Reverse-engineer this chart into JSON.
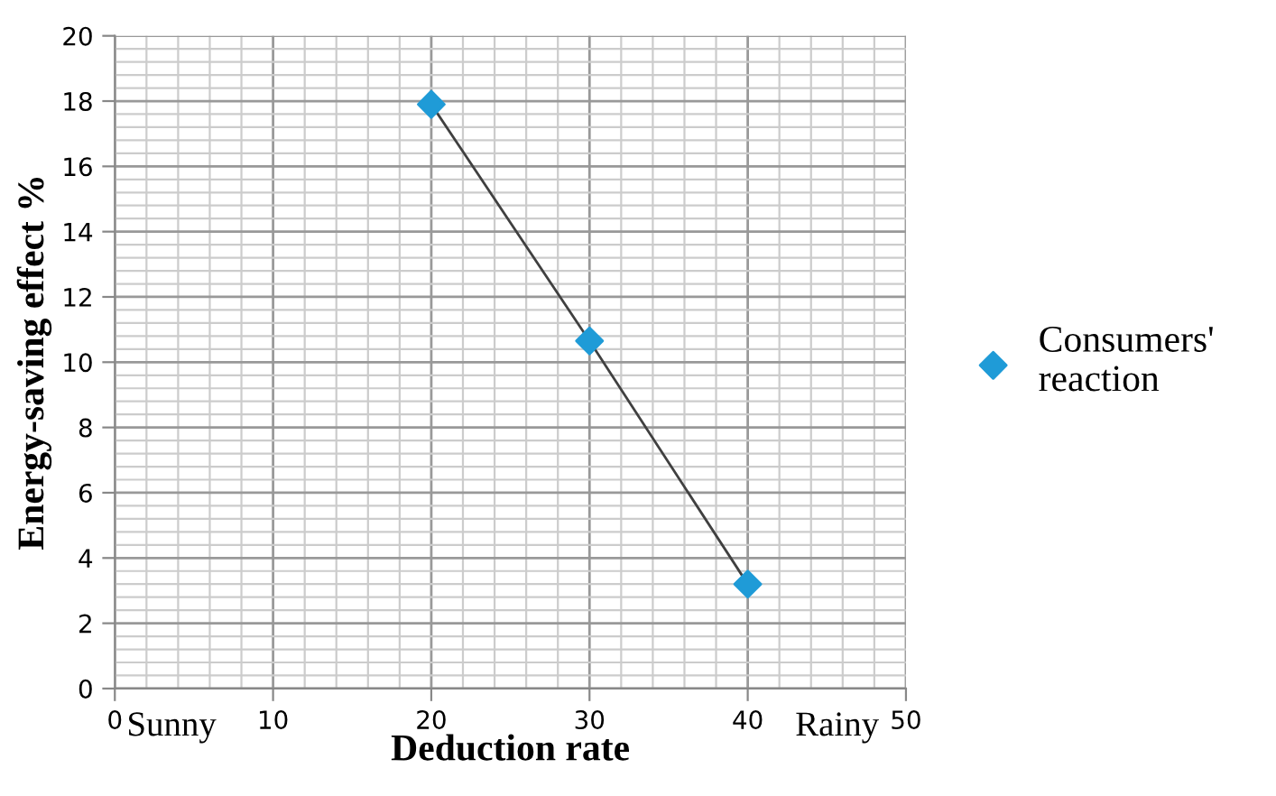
{
  "chart_data": {
    "type": "scatter",
    "xlabel": "Deduction rate",
    "ylabel": "Energy-saving effect %",
    "series": [
      {
        "name": "Consumers' reaction",
        "marker": "diamond",
        "color": "#1f9bd7",
        "x": [
          20,
          30,
          40
        ],
        "values": [
          17.9,
          10.65,
          3.2
        ]
      },
      {
        "type": "line",
        "marker": "none",
        "color": "#404040",
        "x": [
          20,
          30,
          40
        ],
        "values": [
          17.9,
          10.65,
          3.2
        ]
      }
    ],
    "xlim": [
      0,
      50
    ],
    "xticks": [
      0,
      10,
      20,
      30,
      40,
      50
    ],
    "ylim": [
      0,
      20
    ],
    "yticks": [
      0,
      2,
      4,
      6,
      8,
      10,
      12,
      14,
      16,
      18,
      20
    ],
    "grid": true,
    "legend": "right",
    "annotations": [
      "Sunny",
      "Rainy"
    ]
  }
}
